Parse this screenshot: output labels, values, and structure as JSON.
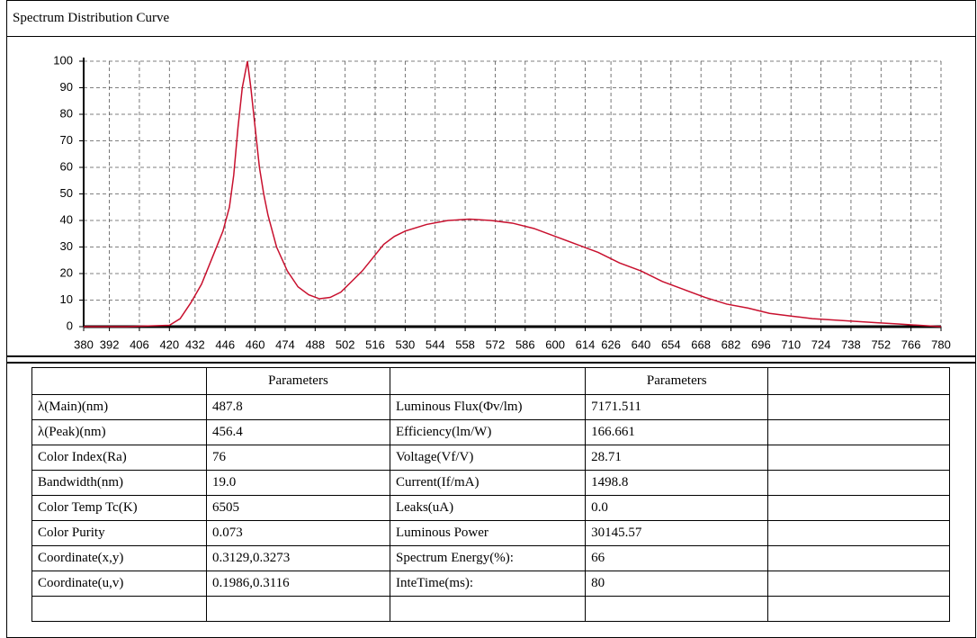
{
  "chart_data": {
    "type": "line",
    "title": "Spectrum Distribution Curve",
    "color": "#c8102e",
    "grid": true,
    "x": [
      380,
      400,
      420,
      425,
      430,
      435,
      440,
      445,
      448,
      450,
      452,
      454,
      456.4,
      458,
      460,
      462,
      464,
      466,
      468,
      470,
      475,
      480,
      485,
      490,
      495,
      500,
      505,
      510,
      515,
      520,
      525,
      530,
      540,
      550,
      560,
      570,
      580,
      590,
      600,
      610,
      620,
      630,
      640,
      650,
      660,
      670,
      680,
      690,
      700,
      710,
      720,
      730,
      740,
      750,
      760,
      770,
      780
    ],
    "values": [
      0,
      0,
      0.5,
      3,
      9,
      16,
      26,
      36,
      45,
      57,
      75,
      90,
      100,
      90,
      75,
      60,
      50,
      42,
      36,
      30,
      21,
      15,
      12,
      10.5,
      11,
      13,
      17,
      21,
      26,
      31,
      34,
      36,
      38.5,
      40,
      40.5,
      40,
      39,
      37,
      34,
      31,
      28,
      24,
      21,
      17,
      14,
      11,
      8.5,
      7,
      5,
      4,
      3,
      2.5,
      2,
      1.5,
      1,
      0.5,
      0
    ],
    "xlim": [
      380,
      780
    ],
    "ylim": [
      0,
      100
    ],
    "xticks": [
      380,
      392,
      406,
      420,
      432,
      446,
      460,
      474,
      488,
      502,
      516,
      530,
      544,
      558,
      572,
      586,
      600,
      614,
      626,
      640,
      654,
      668,
      682,
      696,
      710,
      724,
      738,
      752,
      766,
      780
    ],
    "yticks": [
      0,
      10,
      20,
      30,
      40,
      50,
      60,
      70,
      80,
      90,
      100
    ]
  },
  "table": {
    "headers": [
      "Parameters",
      "Parameters"
    ],
    "rows": [
      {
        "left": [
          "λ(Main)(nm)",
          "487.8"
        ],
        "right": [
          "Luminous Flux(Φv/lm)",
          "7171.511"
        ]
      },
      {
        "left": [
          "λ(Peak)(nm)",
          "456.4"
        ],
        "right": [
          "Efficiency(lm/W)",
          "166.661"
        ]
      },
      {
        "left": [
          "Color Index(Ra)",
          "76"
        ],
        "right": [
          "Voltage(Vf/V)",
          "28.71"
        ]
      },
      {
        "left": [
          "Bandwidth(nm)",
          "19.0"
        ],
        "right": [
          "Current(If/mA)",
          "1498.8"
        ]
      },
      {
        "left": [
          "Color Temp Tc(K)",
          "6505"
        ],
        "right": [
          "Leaks(uA)",
          "0.0"
        ]
      },
      {
        "left": [
          "Color Purity",
          "0.073"
        ],
        "right": [
          "Luminous Power",
          "30145.57"
        ]
      },
      {
        "left": [
          "Coordinate(x,y)",
          "0.3129,0.3273"
        ],
        "right": [
          "Spectrum Energy(%):",
          "66"
        ]
      },
      {
        "left": [
          "Coordinate(u,v)",
          "0.1986,0.3116"
        ],
        "right": [
          "InteTime(ms):",
          "80"
        ]
      }
    ]
  }
}
